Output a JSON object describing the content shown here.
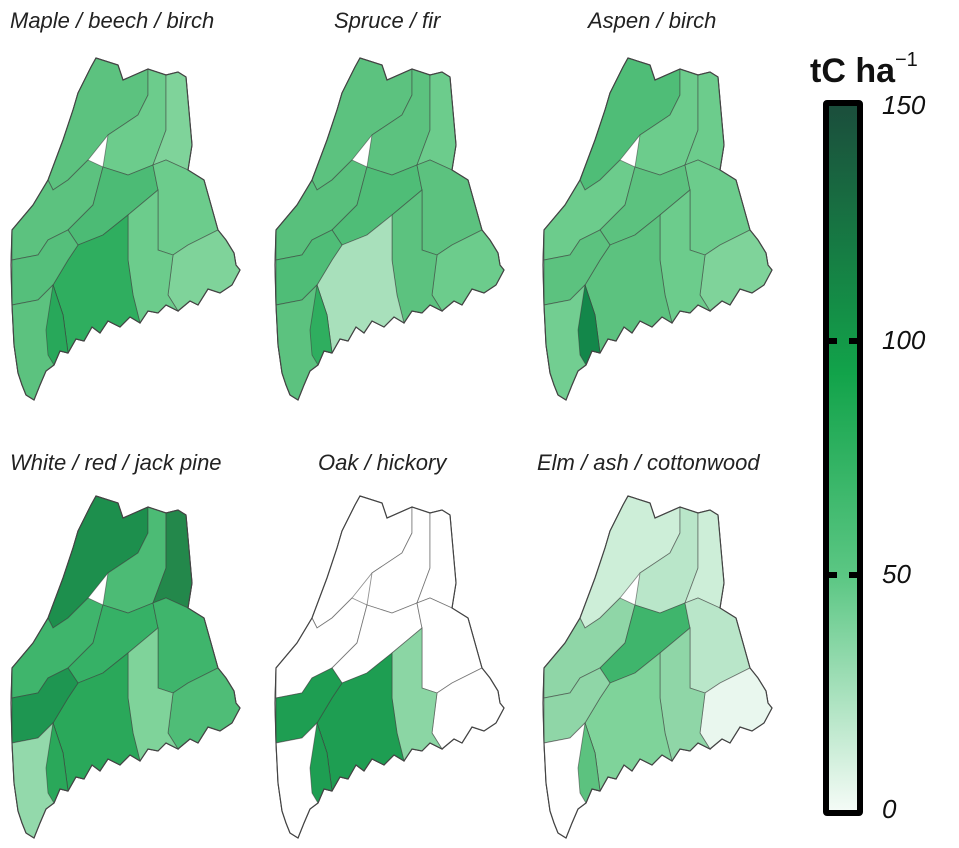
{
  "panels": [
    {
      "title": "Maple / beech / birch"
    },
    {
      "title": "Spruce / fir"
    },
    {
      "title": "Aspen / birch"
    },
    {
      "title": "White / red / jack pine"
    },
    {
      "title": "Oak / hickory"
    },
    {
      "title": "Elm / ash / cottonwood"
    }
  ],
  "colorbar": {
    "title": "tC ha",
    "title_exp": "−1",
    "min": 0,
    "max": 150,
    "ticks": [
      {
        "value": 150,
        "label": "150"
      },
      {
        "value": 100,
        "label": "100"
      },
      {
        "value": 50,
        "label": "50"
      },
      {
        "value": 0,
        "label": "0"
      }
    ],
    "colors": {
      "low": "#f4fbf6",
      "mid": "#5cc784",
      "high_mid": "#12a34a",
      "high": "#1b4e3c"
    }
  },
  "region_fills": {
    "panel_1": [
      "#5cc27f",
      "#6ccc8c",
      "#7fd39a",
      "#5cc27f",
      "#4cbb75",
      "#6ccc8c",
      "#7fd39a",
      "#6ccc8c",
      "#2fae5f",
      "#55bf7b",
      "#5cc27f",
      "#28a85a"
    ],
    "panel_2": [
      "#5cc27f",
      "#5cc27f",
      "#6ccc8c",
      "#58c07c",
      "#4fbd77",
      "#5cc27f",
      "#6ccc8c",
      "#5cc27f",
      "#a8e0bb",
      "#4fbd77",
      "#5cc27f",
      "#2fae5f"
    ],
    "panel_3": [
      "#4fbd77",
      "#6ccc8c",
      "#6ccc8c",
      "#6ccc8c",
      "#5cc27f",
      "#6ccc8c",
      "#7fd39a",
      "#6ccc8c",
      "#5cc27f",
      "#5cc27f",
      "#72ce91",
      "#13874a"
    ],
    "panel_4": [
      "#1d8f4d",
      "#4cbb75",
      "#23884b",
      "#3fb56c",
      "#36b166",
      "#3fb56c",
      "#4fbd77",
      "#7fd39a",
      "#2aa85a",
      "#1e9651",
      "#93d9ab",
      "#2aa85a"
    ],
    "panel_5": [
      "#ffffff",
      "#ffffff",
      "#ffffff",
      "#ffffff",
      "#ffffff",
      "#ffffff",
      "#ffffff",
      "#8bd6a4",
      "#1e9e52",
      "#1e9e52",
      "#ffffff",
      "#1e9e52"
    ],
    "panel_6": [
      "#cdeed8",
      "#b9e6c9",
      "#cdeed8",
      "#8fd6a7",
      "#3fb56c",
      "#b9e6c9",
      "#e9f7ee",
      "#8fd6a7",
      "#7fd39a",
      "#8fd6a7",
      "#ffffff",
      "#5cc27f"
    ]
  }
}
